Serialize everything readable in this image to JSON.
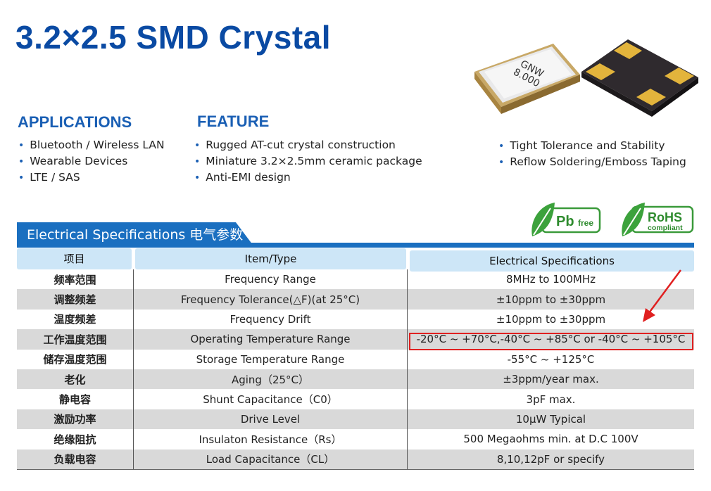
{
  "title": "3.2×2.5 SMD Crystal",
  "product": {
    "marking_line1": "GNW",
    "marking_line2": "8.000"
  },
  "applications": {
    "heading": "APPLICATIONS",
    "items": [
      "Bluetooth / Wireless LAN",
      "Wearable Devices",
      "LTE / SAS"
    ]
  },
  "feature": {
    "heading": "FEATURE",
    "items": [
      "Rugged AT-cut crystal construction",
      "Miniature 3.2×2.5mm ceramic package",
      "Anti-EMI design"
    ],
    "items_right": [
      "Tight Tolerance and Stability",
      "Reflow Soldering/Emboss Taping"
    ]
  },
  "badges": {
    "pb": {
      "main": "Pb",
      "sub": "free"
    },
    "rohs": {
      "main": "RoHS",
      "sub": "compliant"
    }
  },
  "spec_banner": "Electrical Specifications  电气参数",
  "table": {
    "headers": [
      "项目",
      "Item/Type",
      "Electrical Specifications"
    ],
    "rows": [
      [
        "频率范围",
        "Frequency Range",
        "8MHz to 100MHz"
      ],
      [
        "调整频差",
        "Frequency Tolerance(△F)(at 25°C)",
        "±10ppm to ±30ppm"
      ],
      [
        "温度频差",
        "Frequency Drift",
        "±10ppm to ±30ppm"
      ],
      [
        "工作温度范围",
        "Operating Temperature Range",
        "-20°C ~ +70°C,-40°C ~ +85°C or -40°C ~ +105°C"
      ],
      [
        "储存温度范围",
        "Storage Temperature Range",
        "-55°C ~ +125°C"
      ],
      [
        "老化",
        "Aging（25°C）",
        "±3ppm/year max."
      ],
      [
        "静电容",
        "Shunt Capacitance（C0）",
        "3pF max."
      ],
      [
        "激励功率",
        "Drive Level",
        "10μW Typical"
      ],
      [
        "绝缘阻抗",
        "Insulaton Resistance（Rs）",
        "500 Megaohms min. at D.C 100V"
      ],
      [
        "负载电容",
        "Load Capacitance（CL）",
        "8,10,12pF or specify"
      ]
    ]
  },
  "colors": {
    "title": "#0a4aa3",
    "accent": "#1a6fc0",
    "header_bg": "#cde6f7",
    "row_shade": "#d9d9d9",
    "highlight": "#e02020"
  }
}
